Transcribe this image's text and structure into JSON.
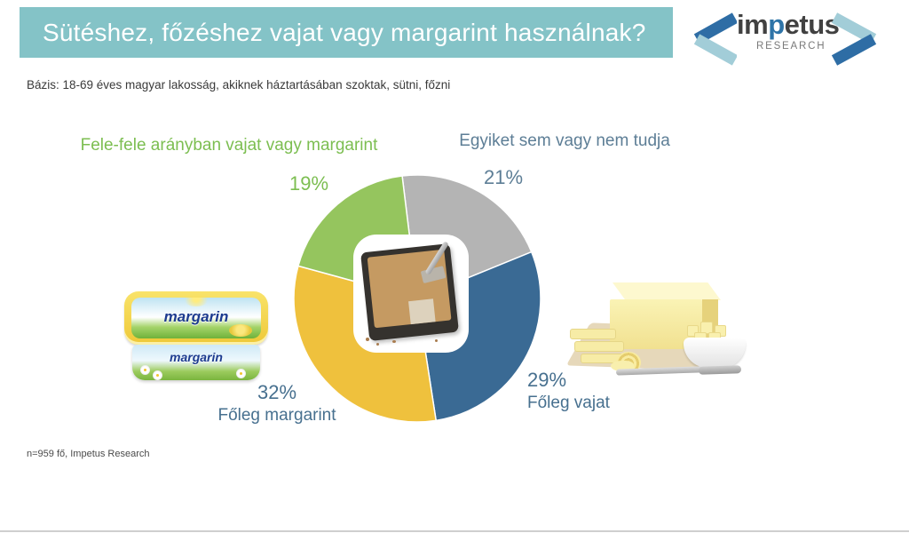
{
  "header": {
    "title": "Sütéshez, főzéshez vajat vagy margarint használnak?",
    "bar_color": "#84C3C7"
  },
  "logo": {
    "brand_pre": "im",
    "brand_accent": "p",
    "brand_post": "etus",
    "sub": "RESEARCH",
    "dark_blue": "#2E6DA5",
    "light_teal": "#A2CDD8"
  },
  "basis_note": "Bázis: 18-69 éves magyar lakosság, akiknek háztartásában szoktak, sütni, főzni",
  "footer_note": "n=959 fő, Impetus Research",
  "margarine": {
    "lid_text": "margarin",
    "body_text": "margarin"
  },
  "chart_data": {
    "type": "pie",
    "title": "Sütéshez, főzéshez vajat vagy margarint használnak?",
    "start_angle_deg": -7,
    "clockwise": true,
    "center_image": "crumble-cake-in-baking-pan",
    "legend_position": "around",
    "slices": [
      {
        "label": "Egyiket sem vagy nem tudja",
        "value": 21,
        "pct_label": "21%",
        "color": "#B4B4B4",
        "label_color": "#5D7E96"
      },
      {
        "label": "Főleg vajat",
        "value": 29,
        "pct_label": "29%",
        "color": "#3A6A94",
        "label_color": "#47708F"
      },
      {
        "label": "Főleg margarint",
        "value": 32,
        "pct_label": "32%",
        "color": "#EFC13D",
        "label_color": "#47708F"
      },
      {
        "label": "Fele-fele arányban vajat vagy margarint",
        "value": 19,
        "pct_label": "19%",
        "color": "#95C55E",
        "label_color": "#7CBE51"
      }
    ]
  }
}
